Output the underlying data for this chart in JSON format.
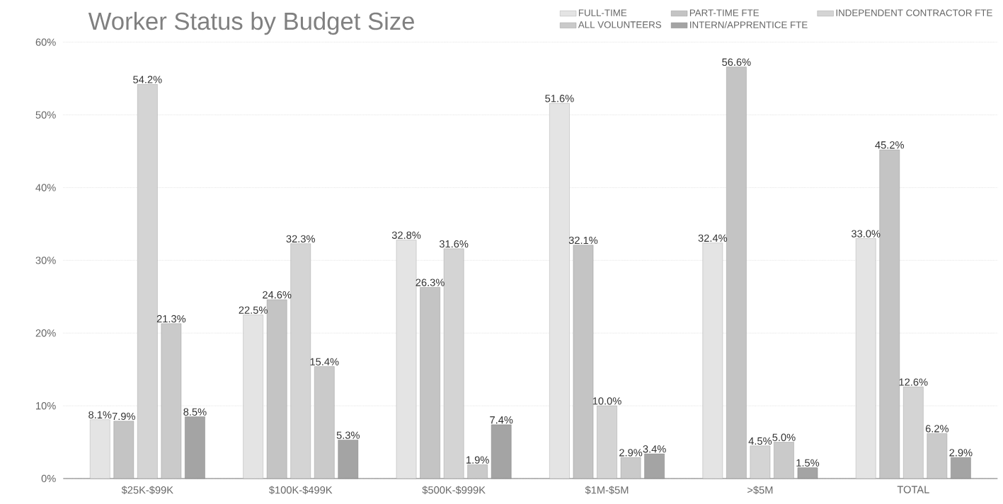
{
  "chart_data": {
    "type": "bar",
    "title": "Worker Status by Budget Size",
    "categories": [
      "$25K-$99K",
      "$100K-$499K",
      "$500K-$999K",
      "$1M-$5M",
      ">$5M",
      "TOTAL"
    ],
    "series": [
      {
        "name": "FULL-TIME",
        "color": "#e4e4e4",
        "values": [
          8.1,
          22.5,
          32.8,
          51.6,
          32.4,
          33.0
        ],
        "value_labels": [
          "8.1%",
          "22.5%",
          "32.8%",
          "51.6%",
          "32.4%",
          "33.0%"
        ]
      },
      {
        "name": "PART-TIME FTE",
        "color": "#c4c4c4",
        "values": [
          7.9,
          24.6,
          26.3,
          32.1,
          56.6,
          45.2
        ],
        "value_labels": [
          "7.9%",
          "24.6%",
          "26.3%",
          "32.1%",
          "56.6%",
          "45.2%"
        ]
      },
      {
        "name": "INDEPENDENT CONTRACTOR FTE",
        "color": "#d4d4d4",
        "values": [
          54.2,
          32.3,
          31.6,
          10.0,
          4.5,
          12.6
        ],
        "value_labels": [
          "54.2%",
          "32.3%",
          "31.6%",
          "10.0%",
          "4.5%",
          "12.6%"
        ]
      },
      {
        "name": "ALL VOLUNTEERS",
        "color": "#cacaca",
        "values": [
          21.3,
          15.4,
          1.9,
          2.9,
          5.0,
          6.2
        ],
        "value_labels": [
          "21.3%",
          "15.4%",
          "1.9%",
          "2.9%",
          "5.0%",
          "6.2%"
        ]
      },
      {
        "name": "INTERN/APPRENTICE FTE",
        "color": "#a4a4a4",
        "values": [
          8.5,
          5.3,
          7.4,
          3.4,
          1.5,
          2.9
        ],
        "value_labels": [
          "8.5%",
          "5.3%",
          "7.4%",
          "3.4%",
          "1.5%",
          "2.9%"
        ]
      }
    ],
    "ylim": [
      0,
      60
    ],
    "yticks": [
      {
        "value": 0,
        "label": "0%"
      },
      {
        "value": 10,
        "label": "10%"
      },
      {
        "value": 20,
        "label": "20%"
      },
      {
        "value": 30,
        "label": "30%"
      },
      {
        "value": 40,
        "label": "40%"
      },
      {
        "value": 50,
        "label": "50%"
      },
      {
        "value": 60,
        "label": "60%"
      }
    ],
    "grid": "y",
    "legend": "top right"
  }
}
